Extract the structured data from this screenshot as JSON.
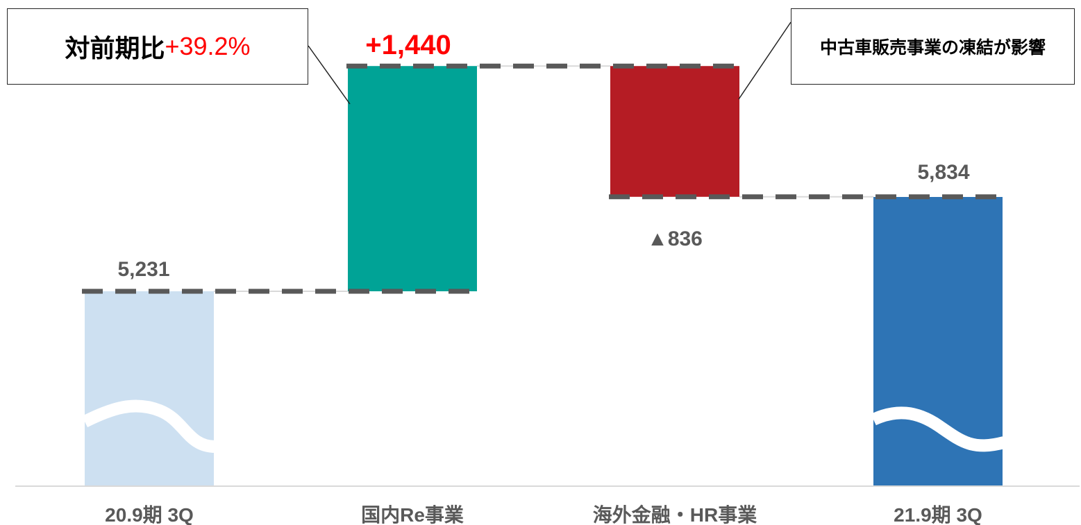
{
  "chart_data": {
    "type": "waterfall",
    "categories": [
      "20.9期 3Q",
      "国内Re事業",
      "海外金融・HR事業",
      "21.9期 3Q"
    ],
    "values": [
      5231,
      1440,
      -836,
      5834
    ],
    "data_labels": [
      "5,231",
      "+1,440",
      "▲836",
      "5,834"
    ],
    "measures": [
      "total",
      "relative",
      "relative",
      "total"
    ],
    "colors": {
      "start": "#cde0f1",
      "increase": "#00a396",
      "decrease": "#b51c24",
      "end": "#2e74b5",
      "increase_label": "#ff0000",
      "label": "#595959",
      "connector": "#595959"
    },
    "axis_break": true
  },
  "annotations": {
    "yoy_label": "対前期比",
    "yoy_value": "+39.2%",
    "decrease_note": "中古車販売事業の凍結が影響"
  }
}
